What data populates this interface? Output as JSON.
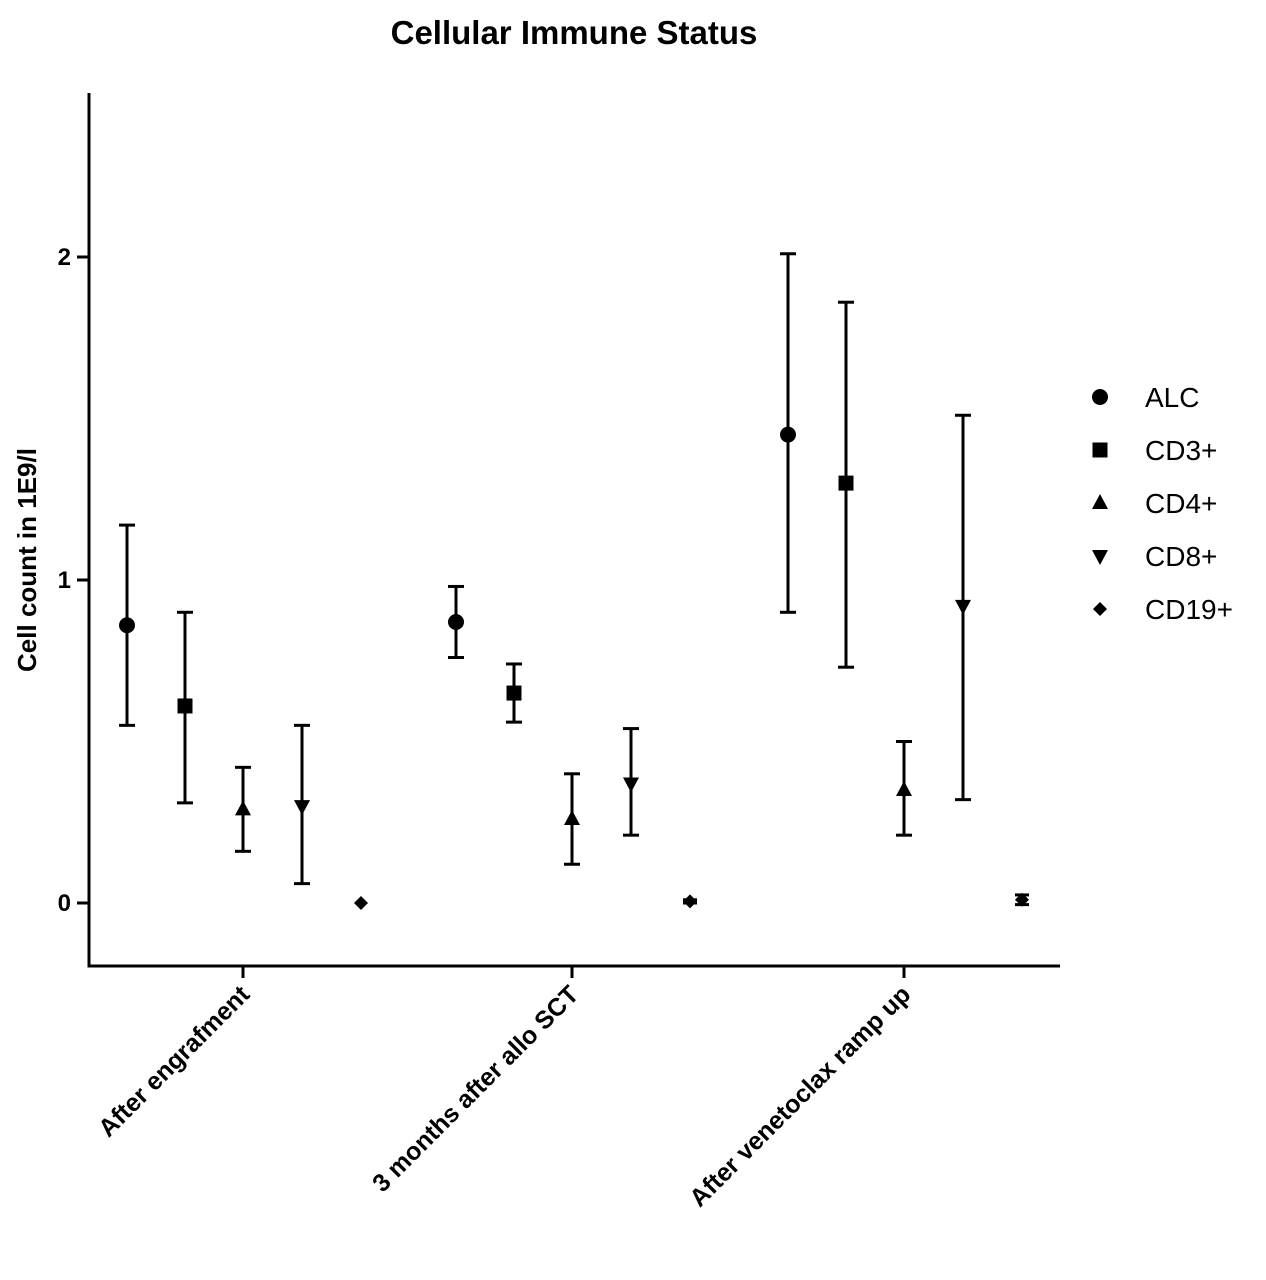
{
  "chart_data": {
    "type": "scatter",
    "title": "Cellular Immune  Status",
    "xlabel": "",
    "ylabel": "Cell count in 1E9/l",
    "ylim": [
      -0.2,
      2.5
    ],
    "yticks": [
      0,
      1,
      2
    ],
    "categories": [
      "After engrafment",
      "3 months after allo SCT",
      "After venetoclax ramp up"
    ],
    "legend_position": "right",
    "grid": false,
    "series": [
      {
        "name": "ALC",
        "marker": "circle",
        "values": [
          0.86,
          0.87,
          1.45
        ],
        "err_low": [
          0.55,
          0.76,
          0.9
        ],
        "err_high": [
          1.17,
          0.98,
          2.01
        ]
      },
      {
        "name": "CD3+",
        "marker": "square",
        "values": [
          0.61,
          0.65,
          1.3
        ],
        "err_low": [
          0.31,
          0.56,
          0.73
        ],
        "err_high": [
          0.9,
          0.74,
          1.86
        ]
      },
      {
        "name": "CD4+",
        "marker": "triangle-up",
        "values": [
          0.29,
          0.26,
          0.35
        ],
        "err_low": [
          0.16,
          0.12,
          0.21
        ],
        "err_high": [
          0.42,
          0.4,
          0.5
        ]
      },
      {
        "name": "CD8+",
        "marker": "triangle-down",
        "values": [
          0.3,
          0.37,
          0.92
        ],
        "err_low": [
          0.06,
          0.21,
          0.32
        ],
        "err_high": [
          0.55,
          0.54,
          1.51
        ]
      },
      {
        "name": "CD19+",
        "marker": "diamond",
        "values": [
          0.0,
          0.005,
          0.01
        ],
        "err_low": [
          0.0,
          0.0,
          -0.005
        ],
        "err_high": [
          0.0,
          0.01,
          0.025
        ]
      }
    ]
  }
}
